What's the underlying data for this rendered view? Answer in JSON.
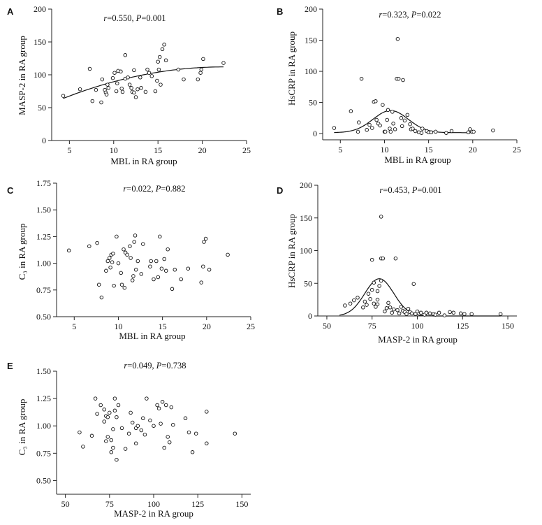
{
  "figure": {
    "chart_data": [
      {
        "panel": "A",
        "type": "scatter",
        "stat": {
          "r": "r",
          "r_value": "=0.550, ",
          "p": "P",
          "p_value": "=0.001"
        },
        "xlabel": "MBL in RA group",
        "ylabel": "MASP-2 in RA group",
        "xlim": [
          3,
          25
        ],
        "ylim": [
          0,
          200
        ],
        "xticks": [
          5,
          10,
          15,
          20,
          25
        ],
        "yticks": [
          0,
          50,
          100,
          150,
          200
        ],
        "points": [
          [
            4.3,
            68
          ],
          [
            6.2,
            78
          ],
          [
            7.3,
            109
          ],
          [
            7.6,
            60
          ],
          [
            8.0,
            77
          ],
          [
            8.6,
            58
          ],
          [
            8.7,
            93
          ],
          [
            9.0,
            77
          ],
          [
            9.1,
            73
          ],
          [
            9.2,
            70
          ],
          [
            9.3,
            85
          ],
          [
            9.4,
            80
          ],
          [
            9.9,
            95
          ],
          [
            10.1,
            103
          ],
          [
            10.3,
            75
          ],
          [
            10.4,
            87
          ],
          [
            10.5,
            106
          ],
          [
            10.8,
            105
          ],
          [
            10.9,
            79
          ],
          [
            11.0,
            74
          ],
          [
            11.3,
            130
          ],
          [
            11.3,
            94
          ],
          [
            11.6,
            96
          ],
          [
            11.8,
            85
          ],
          [
            12.0,
            80
          ],
          [
            12.1,
            74
          ],
          [
            12.3,
            73
          ],
          [
            12.5,
            66
          ],
          [
            12.7,
            78
          ],
          [
            13.0,
            96
          ],
          [
            13.1,
            80
          ],
          [
            13.6,
            74
          ],
          [
            13.8,
            108
          ],
          [
            14.0,
            103
          ],
          [
            14.3,
            98
          ],
          [
            14.7,
            75
          ],
          [
            14.9,
            91
          ],
          [
            15.0,
            120
          ],
          [
            15.1,
            108
          ],
          [
            15.2,
            127
          ],
          [
            15.5,
            139
          ],
          [
            15.7,
            146
          ],
          [
            15.9,
            122
          ],
          [
            17.3,
            108
          ],
          [
            17.9,
            93
          ],
          [
            19.5,
            93
          ],
          [
            19.8,
            103
          ],
          [
            19.9,
            108
          ],
          [
            20.1,
            124
          ],
          [
            22.4,
            118
          ],
          [
            15.3,
            85
          ],
          [
            12.3,
            107
          ]
        ],
        "fit_curve": {
          "x": [
            4.3,
            22.4
          ],
          "y": [
            64,
            112
          ],
          "shape": "quadratic"
        }
      },
      {
        "panel": "B",
        "type": "scatter",
        "stat": {
          "r": "r",
          "r_value": "=0.323, ",
          "p": "P",
          "p_value": "=0.022"
        },
        "xlabel": "MBL in RA group",
        "ylabel": "HsCRP in RA group",
        "xlim": [
          3,
          25
        ],
        "ylim": [
          -10,
          200
        ],
        "xticks": [
          5,
          10,
          15,
          20,
          25
        ],
        "yticks": [
          0,
          50,
          100,
          150,
          200
        ],
        "points": [
          [
            4.3,
            9
          ],
          [
            6.2,
            36
          ],
          [
            7.0,
            3
          ],
          [
            7.1,
            18
          ],
          [
            7.4,
            88
          ],
          [
            8.0,
            6
          ],
          [
            8.3,
            14
          ],
          [
            8.6,
            9
          ],
          [
            8.8,
            51
          ],
          [
            9.0,
            52
          ],
          [
            9.1,
            22
          ],
          [
            9.3,
            16
          ],
          [
            9.5,
            13
          ],
          [
            9.8,
            46
          ],
          [
            10.0,
            3
          ],
          [
            10.1,
            3
          ],
          [
            10.3,
            22
          ],
          [
            10.4,
            38
          ],
          [
            10.6,
            8
          ],
          [
            10.7,
            3
          ],
          [
            10.9,
            35
          ],
          [
            11.0,
            16
          ],
          [
            11.2,
            7
          ],
          [
            11.4,
            88
          ],
          [
            11.5,
            152
          ],
          [
            11.6,
            88
          ],
          [
            11.9,
            25
          ],
          [
            12.0,
            12
          ],
          [
            12.1,
            86
          ],
          [
            12.3,
            21
          ],
          [
            12.6,
            30
          ],
          [
            12.9,
            15
          ],
          [
            13.0,
            7
          ],
          [
            13.2,
            8
          ],
          [
            13.5,
            4
          ],
          [
            13.9,
            2
          ],
          [
            14.2,
            1
          ],
          [
            14.3,
            8
          ],
          [
            14.8,
            4
          ],
          [
            15.0,
            2
          ],
          [
            15.3,
            2
          ],
          [
            15.8,
            3
          ],
          [
            17.0,
            1
          ],
          [
            17.6,
            4
          ],
          [
            19.5,
            2
          ],
          [
            19.7,
            7
          ],
          [
            19.9,
            3
          ],
          [
            20.1,
            3
          ],
          [
            22.3,
            5
          ]
        ],
        "fit_curve": {
          "shape": "gaussian",
          "peak_x": 10.7,
          "peak_y": 37,
          "sigma": 2.0,
          "baseline": 1.5,
          "x_range": [
            4.3,
            20.1
          ]
        }
      },
      {
        "panel": "C",
        "type": "scatter",
        "stat": {
          "r": "r",
          "r_value": "=0.022, ",
          "p": "P",
          "p_value": "=0.882"
        },
        "xlabel": "MBL in RA group",
        "ylabel": "C₃ in RA group",
        "xlim": [
          3,
          25
        ],
        "ylim": [
          0.5,
          1.75
        ],
        "xticks": [
          5,
          10,
          15,
          20,
          25
        ],
        "yticks": [
          0.5,
          0.75,
          1.0,
          1.25,
          1.5,
          1.75
        ],
        "ytick_labels": [
          "0.50",
          "0.75",
          "1.00",
          "1.25",
          "1.50",
          "1.75"
        ],
        "points": [
          [
            4.4,
            1.12
          ],
          [
            6.7,
            1.16
          ],
          [
            7.6,
            1.19
          ],
          [
            7.8,
            0.8
          ],
          [
            8.1,
            0.68
          ],
          [
            8.6,
            0.93
          ],
          [
            8.8,
            1.02
          ],
          [
            9.0,
            1.05
          ],
          [
            9.1,
            0.96
          ],
          [
            9.2,
            1.08
          ],
          [
            9.3,
            1.01
          ],
          [
            9.4,
            1.09
          ],
          [
            9.5,
            0.79
          ],
          [
            9.8,
            1.25
          ],
          [
            10.0,
            1.0
          ],
          [
            10.3,
            0.91
          ],
          [
            10.4,
            0.8
          ],
          [
            10.6,
            1.13
          ],
          [
            10.7,
            0.77
          ],
          [
            10.8,
            1.1
          ],
          [
            11.0,
            1.08
          ],
          [
            11.3,
            1.16
          ],
          [
            11.4,
            1.05
          ],
          [
            11.6,
            0.84
          ],
          [
            11.7,
            0.88
          ],
          [
            11.8,
            1.2
          ],
          [
            11.9,
            1.26
          ],
          [
            12.0,
            0.94
          ],
          [
            12.2,
            1.02
          ],
          [
            12.6,
            0.9
          ],
          [
            12.8,
            1.18
          ],
          [
            13.6,
            0.97
          ],
          [
            13.7,
            1.02
          ],
          [
            14.0,
            0.85
          ],
          [
            14.3,
            1.02
          ],
          [
            14.5,
            0.87
          ],
          [
            14.7,
            1.25
          ],
          [
            14.9,
            0.95
          ],
          [
            15.2,
            1.04
          ],
          [
            15.4,
            0.93
          ],
          [
            15.6,
            1.13
          ],
          [
            16.1,
            0.76
          ],
          [
            16.4,
            0.94
          ],
          [
            17.1,
            0.85
          ],
          [
            17.9,
            0.95
          ],
          [
            19.4,
            0.82
          ],
          [
            19.6,
            0.97
          ],
          [
            19.7,
            1.2
          ],
          [
            19.9,
            1.23
          ],
          [
            20.3,
            0.94
          ],
          [
            22.4,
            1.08
          ]
        ]
      },
      {
        "panel": "D",
        "type": "scatter",
        "stat": {
          "r": "r",
          "r_value": "=0.453, ",
          "p": "P",
          "p_value": "=0.001"
        },
        "xlabel": "MASP-2 in RA group",
        "ylabel": "HsCRP in RA group",
        "xlim": [
          45,
          155
        ],
        "ylim": [
          0,
          200
        ],
        "xticks": [
          50,
          75,
          100,
          125,
          150
        ],
        "yticks": [
          0,
          50,
          100,
          150,
          200
        ],
        "points": [
          [
            60,
            16
          ],
          [
            63,
            19
          ],
          [
            65,
            24
          ],
          [
            67,
            28
          ],
          [
            70,
            13
          ],
          [
            71,
            22
          ],
          [
            72,
            17
          ],
          [
            73,
            34
          ],
          [
            74,
            26
          ],
          [
            75,
            40
          ],
          [
            75,
            86
          ],
          [
            76,
            51
          ],
          [
            76,
            19
          ],
          [
            77,
            14
          ],
          [
            78,
            38
          ],
          [
            78,
            25
          ],
          [
            78,
            18
          ],
          [
            79,
            46
          ],
          [
            80,
            152
          ],
          [
            80,
            54
          ],
          [
            80,
            88
          ],
          [
            81,
            88
          ],
          [
            82,
            7
          ],
          [
            83,
            12
          ],
          [
            84,
            20
          ],
          [
            85,
            13
          ],
          [
            86,
            5
          ],
          [
            87,
            10
          ],
          [
            88,
            88
          ],
          [
            89,
            9
          ],
          [
            90,
            4
          ],
          [
            91,
            14
          ],
          [
            92,
            8
          ],
          [
            93,
            6
          ],
          [
            94,
            3
          ],
          [
            95,
            11
          ],
          [
            96,
            6
          ],
          [
            97,
            4
          ],
          [
            98,
            49
          ],
          [
            99,
            3
          ],
          [
            100,
            7
          ],
          [
            102,
            5
          ],
          [
            104,
            2
          ],
          [
            105,
            5
          ],
          [
            107,
            4
          ],
          [
            109,
            3
          ],
          [
            110,
            2
          ],
          [
            112,
            5
          ],
          [
            115,
            1
          ],
          [
            118,
            6
          ],
          [
            120,
            5
          ],
          [
            124,
            4
          ],
          [
            126,
            3
          ],
          [
            130,
            3
          ],
          [
            146,
            3
          ]
        ],
        "fit_curve": {
          "shape": "gaussian",
          "peak_x": 79,
          "peak_y": 57,
          "sigma": 8.0,
          "baseline": 0,
          "x_range": [
            57,
            146
          ]
        }
      },
      {
        "panel": "E",
        "type": "scatter",
        "stat": {
          "r": "r",
          "r_value": "=0.049, ",
          "p": "P",
          "p_value": "=0.738"
        },
        "xlabel": "MASP-2 in RA group",
        "ylabel": "C₃ in RA group",
        "xlim": [
          45,
          155
        ],
        "ylim": [
          0.375,
          1.5
        ],
        "xticks": [
          50,
          75,
          100,
          125,
          150
        ],
        "yticks": [
          0.5,
          0.75,
          1.0,
          1.25,
          1.5
        ],
        "ytick_labels": [
          "0.50",
          "0.75",
          "1.00",
          "1.25",
          "1.50"
        ],
        "points": [
          [
            58,
            0.94
          ],
          [
            60,
            0.81
          ],
          [
            65,
            0.91
          ],
          [
            67,
            1.25
          ],
          [
            68,
            1.11
          ],
          [
            70,
            1.19
          ],
          [
            72,
            1.15
          ],
          [
            72,
            1.04
          ],
          [
            73,
            0.86
          ],
          [
            73,
            1.09
          ],
          [
            74,
            0.9
          ],
          [
            74,
            1.08
          ],
          [
            75,
            1.12
          ],
          [
            76,
            0.87
          ],
          [
            76,
            0.76
          ],
          [
            77,
            0.97
          ],
          [
            77,
            0.8
          ],
          [
            78,
            1.25
          ],
          [
            78,
            1.14
          ],
          [
            79,
            1.08
          ],
          [
            79,
            0.69
          ],
          [
            80,
            1.19
          ],
          [
            82,
            0.98
          ],
          [
            84,
            0.79
          ],
          [
            86,
            0.93
          ],
          [
            87,
            1.12
          ],
          [
            88,
            1.03
          ],
          [
            90,
            0.98
          ],
          [
            90,
            0.84
          ],
          [
            91,
            1.0
          ],
          [
            93,
            0.96
          ],
          [
            94,
            1.07
          ],
          [
            95,
            0.92
          ],
          [
            96,
            1.25
          ],
          [
            98,
            1.05
          ],
          [
            100,
            1.0
          ],
          [
            102,
            1.19
          ],
          [
            103,
            1.16
          ],
          [
            104,
            1.02
          ],
          [
            105,
            1.22
          ],
          [
            106,
            0.8
          ],
          [
            107,
            1.19
          ],
          [
            108,
            0.9
          ],
          [
            109,
            0.85
          ],
          [
            110,
            1.17
          ],
          [
            111,
            1.01
          ],
          [
            118,
            1.07
          ],
          [
            120,
            0.94
          ],
          [
            122,
            0.76
          ],
          [
            124,
            0.93
          ],
          [
            130,
            1.13
          ],
          [
            130,
            0.84
          ],
          [
            146,
            0.93
          ]
        ]
      }
    ]
  }
}
